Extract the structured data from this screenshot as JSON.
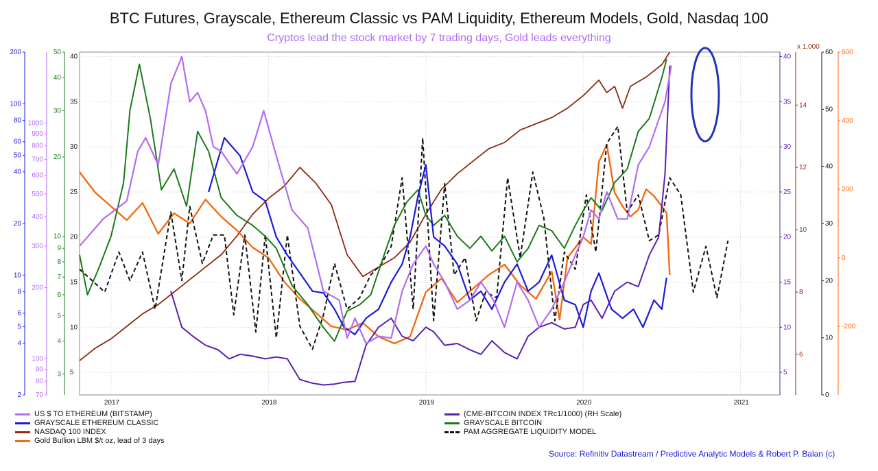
{
  "title": "BTC Futures, Grayscale, Ethereum Classic vs PAM Liquidity, Ethereum Models, Gold, Nasdaq 100",
  "subtitle": "Cryptos lead the stock market by 7 trading days, Gold leads everything",
  "source": "Source: Refinitiv Datastream / Predictive Analytic Models & Robert P. Balan (c)",
  "colors": {
    "eth": "#b36bf2",
    "etc": "#1a1adc",
    "ndx": "#8b2a10",
    "gold": "#f26a12",
    "cme": "#5a1fb0",
    "gbtc": "#1a7a1a",
    "pam": "#111111",
    "circle": "#2233bb"
  },
  "chart_data": {
    "type": "line",
    "title": "BTC Futures, Grayscale, Ethereum Classic vs PAM Liquidity, Ethereum Models, Gold, Nasdaq 100",
    "x_ticks": [
      "2017",
      "2018",
      "2019",
      "2020",
      "2021"
    ],
    "x_range": [
      "2016-10",
      "2021-04"
    ],
    "grid": true,
    "legend_placement": "bottom",
    "axes": {
      "etc_log": {
        "ticks": [
          "2",
          "4",
          "5",
          "6",
          "8",
          "10",
          "20",
          "40",
          "50",
          "60",
          "80",
          "100",
          "200"
        ]
      },
      "eth_log": {
        "ticks": [
          "70",
          "80",
          "90",
          "100",
          "200",
          "300",
          "400",
          "500",
          "600",
          "700",
          "800",
          "900",
          "1000"
        ]
      },
      "gbtc_log": {
        "ticks": [
          "3",
          "4",
          "5",
          "6",
          "7",
          "8",
          "9",
          "10",
          "20",
          "30",
          "40",
          "50"
        ]
      },
      "left_main": {
        "ticks": [
          "5",
          "10",
          "15",
          "20",
          "25",
          "30",
          "35",
          "40"
        ]
      },
      "cme": {
        "ticks": [
          "5",
          "10",
          "15",
          "20",
          "25",
          "30",
          "35",
          "40"
        ]
      },
      "ndx": {
        "unit": "x 1,000",
        "ticks": [
          "6",
          "8",
          "10",
          "12",
          "14"
        ]
      },
      "pam": {
        "ticks": [
          "0",
          "10",
          "20",
          "30",
          "40",
          "50",
          "60"
        ]
      },
      "gold": {
        "ticks": [
          "-200",
          "0",
          "200",
          "400",
          "600"
        ]
      }
    },
    "series": [
      {
        "name": "US $ TO ETHEREUM (BITSTAMP)",
        "key": "eth",
        "x": [
          2016.8,
          2016.95,
          2017.1,
          2017.17,
          2017.22,
          2017.3,
          2017.38,
          2017.45,
          2017.5,
          2017.55,
          2017.6,
          2017.65,
          2017.7,
          2017.8,
          2017.9,
          2017.97,
          2018.05,
          2018.15,
          2018.25,
          2018.35,
          2018.45,
          2018.5,
          2018.55,
          2018.62,
          2018.7,
          2018.78,
          2018.85,
          2018.92,
          2019.0,
          2019.05,
          2019.12,
          2019.2,
          2019.28,
          2019.35,
          2019.43,
          2019.5,
          2019.58,
          2019.65,
          2019.72,
          2019.8,
          2019.88,
          2019.95,
          2020.0,
          2020.05,
          2020.1,
          2020.15,
          2020.22,
          2020.28,
          2020.35,
          2020.42,
          2020.48,
          2020.52,
          2020.56
        ],
        "y": [
          19,
          22,
          24,
          29.5,
          31,
          28,
          37,
          40,
          35,
          36,
          34,
          30,
          29.5,
          27,
          30,
          34,
          29,
          23,
          21,
          14,
          13,
          8.8,
          11,
          8.2,
          9,
          8.8,
          14,
          17,
          19,
          17,
          15,
          12,
          13,
          15,
          13,
          10,
          15,
          13,
          10,
          12,
          15,
          18,
          20,
          23,
          22,
          25,
          22,
          22,
          28,
          30,
          33,
          35,
          39
        ]
      },
      {
        "name": "GRAYSCALE ETHEREUM CLASSIC",
        "key": "etc",
        "x": [
          2017.62,
          2017.72,
          2017.82,
          2017.9,
          2017.98,
          2018.05,
          2018.12,
          2018.2,
          2018.28,
          2018.35,
          2018.42,
          2018.48,
          2018.55,
          2018.62,
          2018.7,
          2018.78,
          2018.85,
          2018.9,
          2018.95,
          2019.0,
          2019.05,
          2019.12,
          2019.2,
          2019.28,
          2019.35,
          2019.42,
          2019.5,
          2019.58,
          2019.65,
          2019.72,
          2019.8,
          2019.88,
          2019.95,
          2020.0,
          2020.05,
          2020.1,
          2020.18,
          2020.25,
          2020.32,
          2020.38,
          2020.45,
          2020.5,
          2020.53
        ],
        "y": [
          25,
          31,
          29,
          25,
          24,
          20,
          18,
          16,
          14,
          13.8,
          12,
          10,
          9.2,
          11,
          12,
          15,
          17,
          20,
          24.5,
          28,
          20,
          19,
          17,
          13,
          14,
          12,
          15,
          17,
          14,
          15,
          18,
          13,
          12.5,
          10,
          14,
          16,
          12,
          11,
          12,
          10,
          13,
          12,
          15.5
        ]
      },
      {
        "name": "NASDAQ 100 INDEX",
        "key": "ndx",
        "x": [
          2016.8,
          2016.9,
          2017.0,
          2017.1,
          2017.2,
          2017.3,
          2017.4,
          2017.5,
          2017.6,
          2017.7,
          2017.8,
          2017.9,
          2018.0,
          2018.1,
          2018.2,
          2018.3,
          2018.4,
          2018.5,
          2018.6,
          2018.7,
          2018.8,
          2018.9,
          2019.0,
          2019.1,
          2019.2,
          2019.3,
          2019.4,
          2019.5,
          2019.6,
          2019.7,
          2019.8,
          2019.9,
          2020.0,
          2020.1,
          2020.15,
          2020.2,
          2020.25,
          2020.3,
          2020.4,
          2020.5,
          2020.55
        ],
        "y": [
          5.8,
          6.2,
          6.5,
          6.9,
          7.3,
          7.6,
          8.0,
          8.4,
          8.8,
          9.2,
          9.8,
          10.5,
          11.0,
          11.4,
          12.0,
          11.5,
          10.8,
          9.2,
          8.5,
          8.8,
          9.1,
          9.6,
          10.5,
          11.3,
          11.8,
          12.2,
          12.6,
          12.8,
          13.2,
          13.4,
          13.6,
          13.9,
          14.3,
          14.8,
          14.4,
          14.6,
          13.9,
          14.6,
          14.9,
          15.3,
          15.7
        ]
      },
      {
        "name": "Gold Bullion LBM $/t oz, lead of 3 days",
        "key": "gold",
        "x": [
          2016.8,
          2016.9,
          2017.0,
          2017.1,
          2017.2,
          2017.3,
          2017.4,
          2017.5,
          2017.6,
          2017.7,
          2017.8,
          2017.9,
          2018.0,
          2018.1,
          2018.2,
          2018.3,
          2018.4,
          2018.5,
          2018.6,
          2018.7,
          2018.8,
          2018.9,
          2019.0,
          2019.1,
          2019.2,
          2019.3,
          2019.4,
          2019.5,
          2019.6,
          2019.7,
          2019.8,
          2019.85,
          2019.9,
          2020.0,
          2020.05,
          2020.1,
          2020.15,
          2020.2,
          2020.25,
          2020.3,
          2020.35,
          2020.4,
          2020.45,
          2020.5,
          2020.53,
          2020.55
        ],
        "y": [
          250,
          190,
          150,
          110,
          160,
          70,
          130,
          100,
          170,
          120,
          80,
          30,
          0,
          -70,
          -120,
          -160,
          -200,
          -210,
          -190,
          -230,
          -250,
          -230,
          -100,
          -60,
          -130,
          -90,
          -50,
          -20,
          -80,
          -120,
          -40,
          -180,
          0,
          60,
          40,
          280,
          330,
          190,
          150,
          120,
          140,
          200,
          180,
          150,
          130,
          -50
        ]
      },
      {
        "name": "(CME-BITCOIN INDEX TRc1/1000) (RH Scale)",
        "key": "cme",
        "x": [
          2017.38,
          2017.45,
          2017.52,
          2017.6,
          2017.68,
          2017.75,
          2017.82,
          2017.9,
          2017.98,
          2018.05,
          2018.12,
          2018.2,
          2018.28,
          2018.35,
          2018.42,
          2018.48,
          2018.55,
          2018.62,
          2018.7,
          2018.78,
          2018.85,
          2018.92,
          2019.0,
          2019.05,
          2019.12,
          2019.2,
          2019.28,
          2019.35,
          2019.42,
          2019.5,
          2019.58,
          2019.65,
          2019.72,
          2019.8,
          2019.88,
          2019.95,
          2020.0,
          2020.05,
          2020.12,
          2020.2,
          2020.28,
          2020.35,
          2020.42,
          2020.48,
          2020.52,
          2020.55
        ],
        "y": [
          14,
          10,
          9,
          8,
          7.5,
          6.5,
          7,
          6.8,
          6.5,
          6.7,
          6.5,
          4.2,
          3.8,
          3.6,
          3.7,
          3.9,
          4,
          8,
          10,
          11,
          9,
          8.5,
          10,
          9.5,
          8,
          8.2,
          7.5,
          7,
          8.5,
          7.2,
          6.5,
          9,
          10,
          10.5,
          9.8,
          10,
          12.5,
          13,
          11,
          14,
          15,
          14.5,
          18,
          20,
          27,
          39
        ]
      },
      {
        "name": "GRAYSCALE BITCOIN",
        "key": "gbtc",
        "x": [
          2016.8,
          2016.85,
          2016.92,
          2017.0,
          2017.08,
          2017.12,
          2017.18,
          2017.25,
          2017.32,
          2017.4,
          2017.48,
          2017.55,
          2017.62,
          2017.7,
          2017.8,
          2017.9,
          2017.98,
          2018.05,
          2018.15,
          2018.25,
          2018.35,
          2018.42,
          2018.5,
          2018.58,
          2018.65,
          2018.72,
          2018.8,
          2018.88,
          2018.95,
          2019.0,
          2019.05,
          2019.12,
          2019.2,
          2019.28,
          2019.35,
          2019.42,
          2019.5,
          2019.58,
          2019.65,
          2019.72,
          2019.8,
          2019.88,
          2019.95,
          2020.0,
          2020.05,
          2020.12,
          2020.2,
          2020.28,
          2020.35,
          2020.42,
          2020.5,
          2020.53
        ],
        "y": [
          8.5,
          6,
          7.5,
          10,
          16,
          30,
          45,
          28,
          15,
          18,
          13,
          25,
          21,
          14,
          12,
          11,
          10,
          9,
          6.5,
          5.5,
          4.5,
          4,
          5.2,
          5.5,
          6,
          8,
          11,
          13.5,
          15,
          12,
          11,
          12,
          10,
          9,
          10,
          8.8,
          10,
          8,
          9,
          11,
          10.5,
          9,
          11,
          12.5,
          14,
          12.5,
          16,
          18,
          25,
          28,
          40,
          47
        ]
      },
      {
        "name": "PAM AGGREGATE LIQUIDITY MODEL",
        "key": "pam",
        "x": [
          2016.8,
          2016.88,
          2016.96,
          2017.05,
          2017.12,
          2017.2,
          2017.28,
          2017.38,
          2017.45,
          2017.5,
          2017.58,
          2017.65,
          2017.72,
          2017.78,
          2017.85,
          2017.92,
          2017.98,
          2018.05,
          2018.12,
          2018.2,
          2018.28,
          2018.35,
          2018.42,
          2018.5,
          2018.58,
          2018.65,
          2018.72,
          2018.78,
          2018.85,
          2018.92,
          2018.98,
          2019.05,
          2019.12,
          2019.18,
          2019.25,
          2019.32,
          2019.38,
          2019.45,
          2019.52,
          2019.6,
          2019.68,
          2019.75,
          2019.82,
          2019.88,
          2019.95,
          2020.02,
          2020.08,
          2020.15,
          2020.22,
          2020.28,
          2020.35,
          2020.42,
          2020.48,
          2020.55,
          2020.62,
          2020.7,
          2020.78,
          2020.85,
          2020.92
        ],
        "y": [
          22,
          20,
          18,
          25,
          20,
          25,
          15,
          32,
          20,
          33,
          23,
          28,
          28,
          14,
          28,
          11,
          28,
          10,
          28,
          12,
          8,
          14,
          23,
          15,
          17,
          21,
          23,
          26,
          38,
          15,
          45,
          13,
          37,
          21,
          24,
          13,
          18,
          17,
          38,
          24,
          39,
          31,
          13,
          25,
          22,
          35,
          25,
          44,
          47,
          32,
          35,
          27,
          28,
          38,
          35,
          18,
          26,
          17,
          27
        ]
      }
    ]
  },
  "y_ticks_render": {
    "etc_log": [
      2,
      4,
      5,
      6,
      8,
      10,
      20,
      40,
      50,
      60,
      80,
      100,
      200
    ],
    "eth_log": [
      70,
      80,
      90,
      100,
      200,
      300,
      400,
      500,
      600,
      700,
      800,
      900,
      1000
    ],
    "gbtc_log": [
      3,
      4,
      5,
      6,
      7,
      8,
      9,
      10,
      20,
      30,
      40,
      50
    ],
    "left_main": [
      5,
      10,
      15,
      20,
      25,
      30,
      35,
      40
    ],
    "cme": [
      5,
      10,
      15,
      20,
      25,
      30,
      35,
      40
    ],
    "ndx": [
      6,
      8,
      10,
      12,
      14
    ],
    "pam": [
      0,
      10,
      20,
      30,
      40,
      50,
      60
    ],
    "gold": [
      -200,
      0,
      200,
      400,
      600
    ]
  },
  "legend": [
    {
      "label": "US $ TO ETHEREUM (BITSTAMP)",
      "key": "eth"
    },
    {
      "label": "GRAYSCALE ETHEREUM CLASSIC",
      "key": "etc"
    },
    {
      "label": "NASDAQ 100 INDEX",
      "key": "ndx"
    },
    {
      "label": "Gold Bullion LBM $/t oz, lead of 3 days",
      "key": "gold"
    },
    {
      "label": "(CME-BITCOIN INDEX TRc1/1000) (RH Scale)",
      "key": "cme"
    },
    {
      "label": "GRAYSCALE BITCOIN",
      "key": "gbtc"
    },
    {
      "label": "PAM AGGREGATE LIQUIDITY MODEL",
      "key": "pam"
    }
  ]
}
